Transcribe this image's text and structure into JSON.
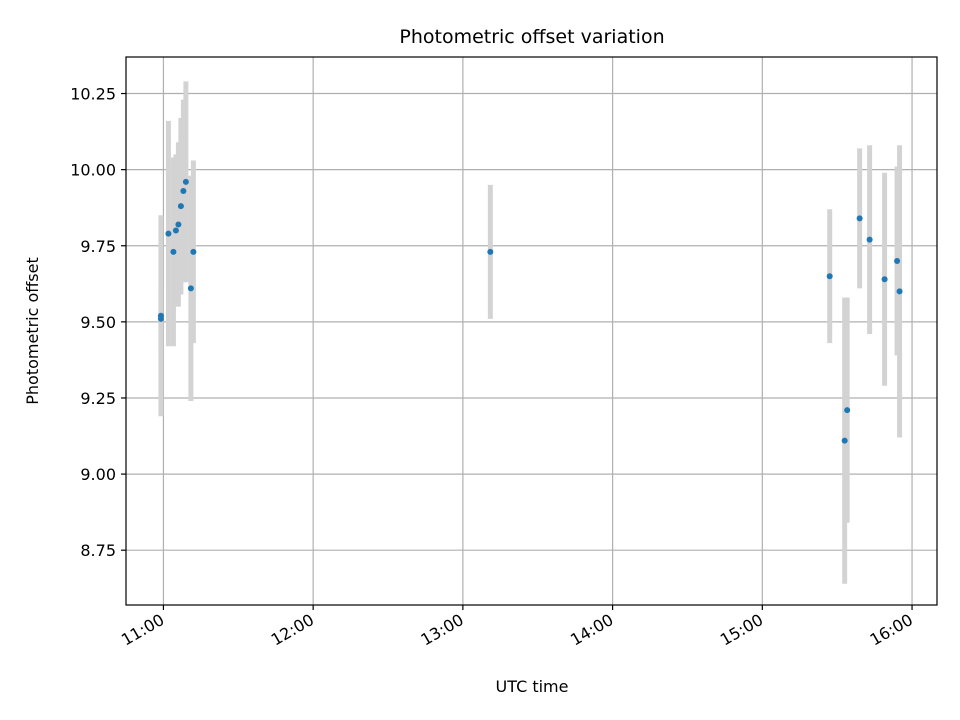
{
  "chart_data": {
    "type": "scatter",
    "title": "Photometric offset variation",
    "xlabel": "UTC time",
    "ylabel": "Photometric offset",
    "x_unit": "UTC hour",
    "xlim": [
      "10:45",
      "16:10"
    ],
    "ylim": [
      8.57,
      10.37
    ],
    "x_ticks": [
      "11:00",
      "12:00",
      "13:00",
      "14:00",
      "15:00",
      "16:00"
    ],
    "y_ticks": [
      "8.75",
      "9.00",
      "9.25",
      "9.50",
      "9.75",
      "10.00",
      "10.25"
    ],
    "grid": true,
    "legend": "none",
    "colors": {
      "point": "#1f77b4",
      "errorbar": "#d3d3d3",
      "grid": "#b0b0b0"
    },
    "points": [
      {
        "x": "10:59",
        "y": 9.52,
        "err": 0.33
      },
      {
        "x": "10:59",
        "y": 9.51,
        "err": 0.1
      },
      {
        "x": "11:02",
        "y": 9.79,
        "err": 0.37
      },
      {
        "x": "11:04",
        "y": 9.73,
        "err": 0.31
      },
      {
        "x": "11:05",
        "y": 9.8,
        "err": 0.25
      },
      {
        "x": "11:06",
        "y": 9.82,
        "err": 0.27
      },
      {
        "x": "11:07",
        "y": 9.88,
        "err": 0.29
      },
      {
        "x": "11:08",
        "y": 9.93,
        "err": 0.3
      },
      {
        "x": "11:09",
        "y": 9.96,
        "err": 0.33
      },
      {
        "x": "11:11",
        "y": 9.61,
        "err": 0.37
      },
      {
        "x": "11:12",
        "y": 9.73,
        "err": 0.3
      },
      {
        "x": "13:11",
        "y": 9.73,
        "err": 0.22
      },
      {
        "x": "15:27",
        "y": 9.65,
        "err": 0.22
      },
      {
        "x": "15:33",
        "y": 9.11,
        "err": 0.47
      },
      {
        "x": "15:34",
        "y": 9.21,
        "err": 0.37
      },
      {
        "x": "15:39",
        "y": 9.84,
        "err": 0.23
      },
      {
        "x": "15:43",
        "y": 9.77,
        "err": 0.31
      },
      {
        "x": "15:49",
        "y": 9.64,
        "err": 0.35
      },
      {
        "x": "15:54",
        "y": 9.7,
        "err": 0.31
      },
      {
        "x": "15:55",
        "y": 9.6,
        "err": 0.48
      }
    ]
  }
}
